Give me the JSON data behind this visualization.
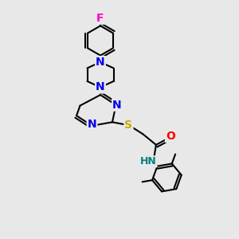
{
  "background_color": "#e8e8e8",
  "atom_colors": {
    "C": "#000000",
    "N": "#0000ee",
    "O": "#ff0000",
    "S": "#ccaa00",
    "F": "#ff00cc",
    "H": "#008080"
  },
  "bond_color": "#000000",
  "bond_width": 1.5,
  "font_size": 10
}
